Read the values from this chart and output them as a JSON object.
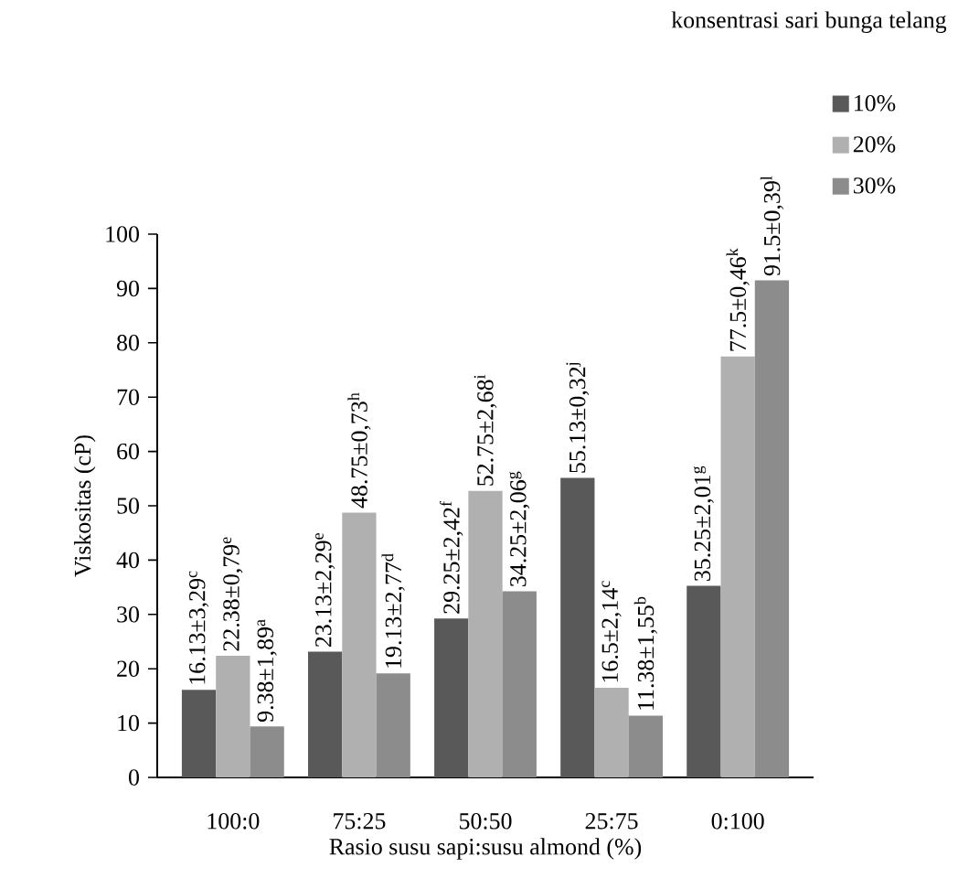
{
  "chart_data": {
    "type": "bar",
    "xlabel": "Rasio susu sapi:susu almond (%)",
    "ylabel": "Viskositas (cP)",
    "legend_title": "konsentrasi sari bunga telang",
    "categories": [
      "100:0",
      "75:25",
      "50:50",
      "25:75",
      "0:100"
    ],
    "series": [
      {
        "name": "10%",
        "color": "#595959",
        "values": [
          16.13,
          23.13,
          29.25,
          55.13,
          35.25
        ],
        "value_labels": [
          "16.13±3,29$^{c}$",
          "23.13±2,29$^{e}$",
          "29.25±2,42$^{f}$",
          "55.13±0,32$^{j}$",
          "35.25±2,01$^{g}$"
        ]
      },
      {
        "name": "20%",
        "color": "#b0b0b0",
        "values": [
          22.38,
          48.75,
          52.75,
          16.5,
          77.5
        ],
        "value_labels": [
          "22.38±0,79$^{e}$",
          "48.75±0,73$^{h}$",
          "52.75±2,68$^{i}$",
          "16.5±2,14$^{c}$",
          "77.5±0,46$^{k}$"
        ]
      },
      {
        "name": "30%",
        "color": "#8c8c8c",
        "values": [
          9.38,
          19.13,
          34.25,
          11.38,
          91.5
        ],
        "value_labels": [
          "9.38±1,89$^{a}$",
          "19.13±2,77$^{d}$",
          "34.25±2,06$^{g}$",
          "11.38±1,55$^{b}$",
          "91.5±0,39$^{l}$"
        ]
      }
    ],
    "ylim": [
      0,
      100
    ],
    "yticks": [
      0,
      10,
      20,
      30,
      40,
      50,
      60,
      70,
      80,
      90,
      100
    ],
    "legend": "top right"
  }
}
